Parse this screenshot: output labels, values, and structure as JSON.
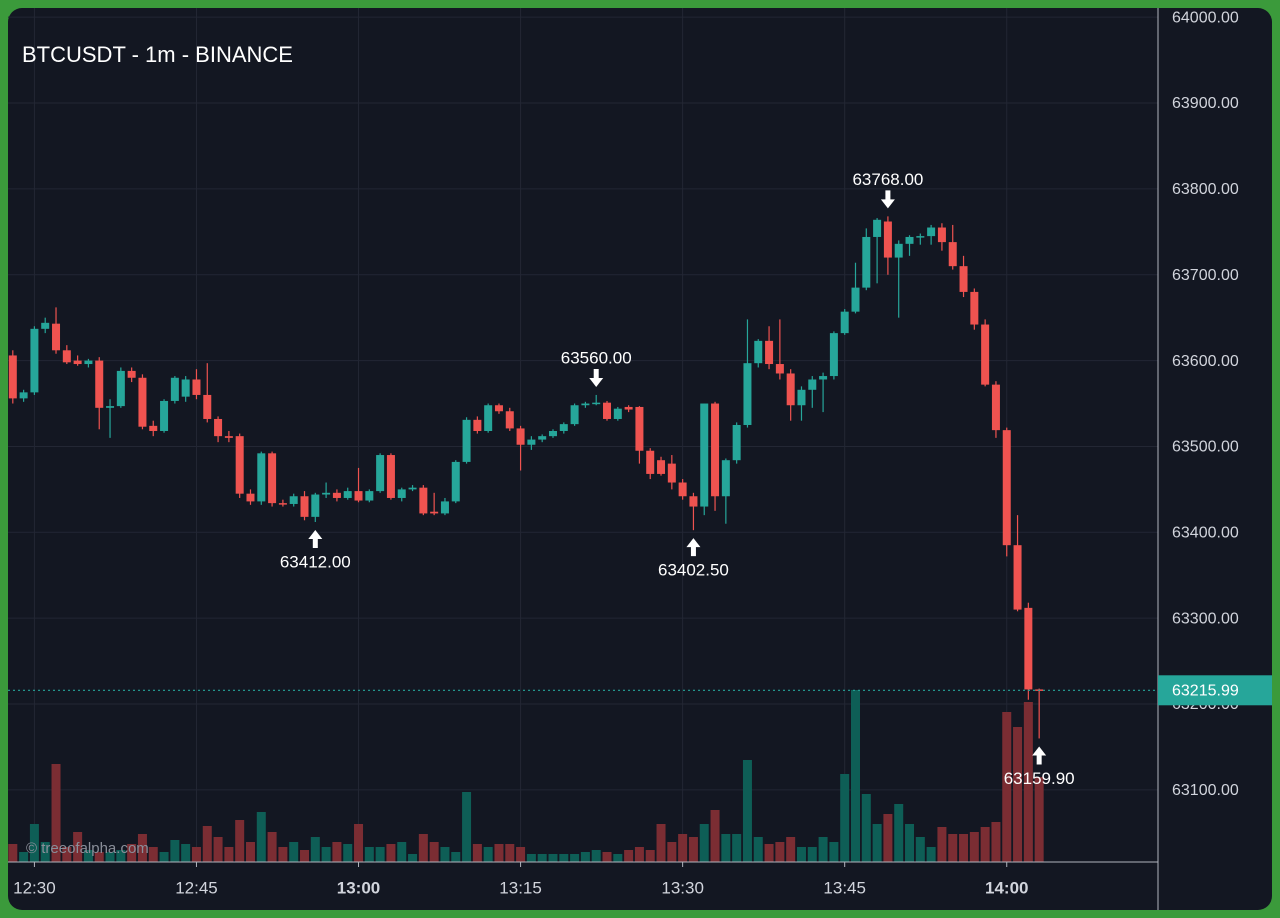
{
  "chart_data": {
    "type": "candlestick",
    "title": "BTCUSDT - 1m - BINANCE",
    "watermark": "© treeofalpha.com",
    "x": [
      "12:28",
      "12:29",
      "12:30",
      "12:31",
      "12:32",
      "12:33",
      "12:34",
      "12:35",
      "12:36",
      "12:37",
      "12:38",
      "12:39",
      "12:40",
      "12:41",
      "12:42",
      "12:43",
      "12:44",
      "12:45",
      "12:46",
      "12:47",
      "12:48",
      "12:49",
      "12:50",
      "12:51",
      "12:52",
      "12:53",
      "12:54",
      "12:55",
      "12:56",
      "12:57",
      "12:58",
      "12:59",
      "13:00",
      "13:01",
      "13:02",
      "13:03",
      "13:04",
      "13:05",
      "13:06",
      "13:07",
      "13:08",
      "13:09",
      "13:10",
      "13:11",
      "13:12",
      "13:13",
      "13:14",
      "13:15",
      "13:16",
      "13:17",
      "13:18",
      "13:19",
      "13:20",
      "13:21",
      "13:22",
      "13:23",
      "13:24",
      "13:25",
      "13:26",
      "13:27",
      "13:28",
      "13:29",
      "13:30",
      "13:31",
      "13:32",
      "13:33",
      "13:34",
      "13:35",
      "13:36",
      "13:37",
      "13:38",
      "13:39",
      "13:40",
      "13:41",
      "13:42",
      "13:43",
      "13:44",
      "13:45",
      "13:46",
      "13:47",
      "13:48",
      "13:49",
      "13:50",
      "13:51",
      "13:52",
      "13:53",
      "13:54",
      "13:55",
      "13:56",
      "13:57",
      "13:58",
      "13:59",
      "14:00",
      "14:01",
      "14:02",
      "14:03"
    ],
    "open": [
      63606,
      63556,
      63563,
      63637,
      63643,
      63612,
      63600,
      63596,
      63600,
      63545,
      63547,
      63588,
      63580,
      63524,
      63518,
      63553,
      63558,
      63578,
      63560,
      63532,
      63512,
      63512,
      63445,
      63436,
      63492,
      63434,
      63433,
      63442,
      63418,
      63444,
      63446,
      63440,
      63448,
      63437,
      63448,
      63490,
      63440,
      63450,
      63452,
      63424,
      63422,
      63436,
      63482,
      63531,
      63518,
      63548,
      63541,
      63521,
      63502,
      63508,
      63512,
      63518,
      63526,
      63548,
      63550,
      63551,
      63532,
      63546,
      63546,
      63495,
      63484,
      63480,
      63458,
      63442,
      63430,
      63550,
      63442,
      63484,
      63525,
      63597,
      63623,
      63596,
      63585,
      63548,
      63566,
      63578,
      63582,
      63632,
      63657,
      63685,
      63744,
      63762,
      63720,
      63736,
      63744,
      63745,
      63755,
      63738,
      63710,
      63680,
      63642,
      63572,
      63519,
      63385,
      63312,
      63217
    ],
    "high": [
      63612,
      63566,
      63640,
      63650,
      63662,
      63618,
      63606,
      63602,
      63604,
      63555,
      63592,
      63592,
      63584,
      63530,
      63555,
      63582,
      63582,
      63590,
      63597,
      63535,
      63518,
      63515,
      63450,
      63494,
      63494,
      63438,
      63445,
      63448,
      63446,
      63458,
      63450,
      63452,
      63475,
      63450,
      63492,
      63492,
      63452,
      63455,
      63455,
      63446,
      63440,
      63484,
      63534,
      63535,
      63550,
      63550,
      63545,
      63524,
      63512,
      63514,
      63520,
      63528,
      63550,
      63552,
      63560,
      63553,
      63546,
      63548,
      63547,
      63498,
      63488,
      63490,
      63462,
      63446,
      63550,
      63552,
      63486,
      63528,
      63648,
      63625,
      63640,
      63648,
      63590,
      63570,
      63582,
      63586,
      63634,
      63660,
      63714,
      63754,
      63766,
      63768,
      63740,
      63746,
      63748,
      63758,
      63760,
      63758,
      63722,
      63684,
      63648,
      63576,
      63522,
      63420,
      63318,
      63218
    ],
    "low": [
      63550,
      63552,
      63560,
      63632,
      63608,
      63596,
      63594,
      63592,
      63520,
      63510,
      63545,
      63575,
      63520,
      63512,
      63516,
      63550,
      63552,
      63555,
      63528,
      63505,
      63505,
      63440,
      63432,
      63432,
      63430,
      63430,
      63430,
      63414,
      63412,
      63440,
      63436,
      63438,
      63435,
      63435,
      63446,
      63438,
      63436,
      63448,
      63420,
      63420,
      63420,
      63434,
      63480,
      63515,
      63516,
      63538,
      63518,
      63472,
      63496,
      63505,
      63510,
      63515,
      63524,
      63545,
      63548,
      63530,
      63530,
      63540,
      63480,
      63462,
      63466,
      63450,
      63438,
      63402.5,
      63420,
      63425,
      63410,
      63480,
      63522,
      63592,
      63590,
      63578,
      63530,
      63530,
      63545,
      63540,
      63578,
      63630,
      63655,
      63682,
      63690,
      63700,
      63650,
      63722,
      63735,
      63735,
      63728,
      63706,
      63674,
      63636,
      63570,
      63510,
      63372,
      63308,
      63205,
      63159.9
    ],
    "close": [
      63556,
      63563,
      63637,
      63644,
      63612,
      63598,
      63596,
      63600,
      63545,
      63547,
      63588,
      63580,
      63523,
      63518,
      63553,
      63580,
      63578,
      63560,
      63532,
      63512,
      63510,
      63445,
      63436,
      63492,
      63434,
      63433,
      63442,
      63418,
      63444,
      63446,
      63440,
      63448,
      63437,
      63448,
      63490,
      63440,
      63450,
      63452,
      63422,
      63422,
      63436,
      63482,
      63531,
      63518,
      63548,
      63541,
      63521,
      63502,
      63508,
      63512,
      63518,
      63526,
      63548,
      63550,
      63551,
      63532,
      63544,
      63543,
      63495,
      63468,
      63468,
      63458,
      63442,
      63430,
      63550,
      63442,
      63484,
      63525,
      63597,
      63623,
      63596,
      63585,
      63548,
      63566,
      63578,
      63582,
      63632,
      63657,
      63685,
      63744,
      63764,
      63720,
      63736,
      63744,
      63745,
      63755,
      63738,
      63710,
      63680,
      63642,
      63572,
      63519,
      63385,
      63310,
      63217,
      63215.99
    ],
    "volume": [
      18,
      10,
      38,
      20,
      98,
      15,
      30,
      12,
      10,
      10,
      12,
      18,
      28,
      15,
      10,
      22,
      18,
      15,
      36,
      25,
      15,
      42,
      20,
      50,
      30,
      15,
      20,
      12,
      25,
      15,
      20,
      18,
      38,
      15,
      15,
      18,
      20,
      8,
      28,
      20,
      15,
      10,
      70,
      18,
      15,
      18,
      18,
      15,
      8,
      8,
      8,
      8,
      8,
      10,
      12,
      10,
      8,
      12,
      15,
      12,
      38,
      20,
      28,
      25,
      38,
      52,
      28,
      28,
      102,
      25,
      18,
      20,
      25,
      15,
      15,
      25,
      20,
      88,
      172,
      68,
      38,
      48,
      58,
      38,
      25,
      15,
      35,
      28,
      28,
      30,
      35,
      40,
      150,
      135,
      160,
      85
    ],
    "up_color": "#26a69a",
    "down_color": "#ef5350",
    "up_volume_color": "#0e5e56",
    "down_volume_color": "#7b2d33",
    "last_price": 63215.99,
    "annotations": [
      {
        "x": "12:56",
        "value": 63412,
        "label": "63412.00",
        "direction": "up"
      },
      {
        "x": "13:22",
        "value": 63560,
        "label": "63560.00",
        "direction": "down"
      },
      {
        "x": "13:31",
        "value": 63402.5,
        "label": "63402.50",
        "direction": "up"
      },
      {
        "x": "13:49",
        "value": 63768,
        "label": "63768.00",
        "direction": "down"
      },
      {
        "x": "14:03",
        "value": 63159.9,
        "label": "63159.90",
        "direction": "up"
      }
    ],
    "xlim": [
      "12:27",
      "14:14"
    ],
    "xticks": [
      "12:30",
      "12:45",
      "13:00",
      "13:15",
      "13:30",
      "13:45",
      "14:00"
    ],
    "ylim": [
      63016,
      64020
    ],
    "yticks": [
      {
        "value": 63100,
        "label": "63100.00"
      },
      {
        "value": 63200,
        "label": "63200.00"
      },
      {
        "value": 63300,
        "label": "63300.00"
      },
      {
        "value": 63400,
        "label": "63400.00"
      },
      {
        "value": 63500,
        "label": "63500.00"
      },
      {
        "value": 63600,
        "label": "63600.00"
      },
      {
        "value": 63700,
        "label": "63700.00"
      },
      {
        "value": 63800,
        "label": "63800.00"
      },
      {
        "value": 63900,
        "label": "63900.00"
      },
      {
        "value": 64000,
        "label": "64000.00"
      }
    ],
    "grid": true
  }
}
